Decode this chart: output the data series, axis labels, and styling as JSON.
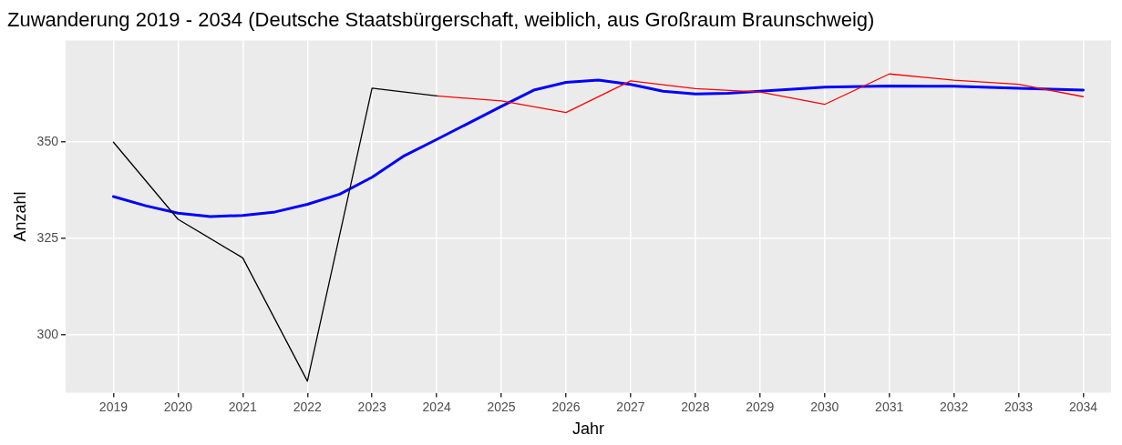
{
  "chart_data": {
    "type": "line",
    "title": "Zuwanderung 2019 - 2034 (Deutsche Staatsbürgerschaft, weiblich, aus Großraum Braunschweig)",
    "xlabel": "Jahr",
    "ylabel": "Anzahl",
    "xlim": [
      2018.26,
      2034.43
    ],
    "xticks": [
      2019,
      2020,
      2021,
      2022,
      2023,
      2024,
      2025,
      2026,
      2027,
      2028,
      2029,
      2030,
      2031,
      2032,
      2033,
      2034
    ],
    "ylim": [
      285,
      376.4
    ],
    "yticks": [
      300,
      325,
      350
    ],
    "grid": true,
    "legend": false,
    "marker": "none",
    "line_style": "solid",
    "series": [
      {
        "color": "#000000",
        "x": [
          2019,
          2020,
          2021,
          2022,
          2023,
          2024
        ],
        "values": [
          350,
          330,
          320,
          288,
          364,
          362
        ]
      },
      {
        "color": "#ff0000",
        "x": [
          2024,
          2025,
          2026,
          2027,
          2028,
          2029,
          2030,
          2031,
          2032,
          2033,
          2034
        ],
        "values": [
          362,
          360.7,
          357.7,
          365.9,
          363.9,
          363,
          359.8,
          367.7,
          366.1,
          365,
          361.8
        ]
      },
      {
        "color": "#0000ff",
        "x": [
          2019,
          2019.5,
          2020,
          2020.5,
          2021,
          2021.5,
          2022,
          2022.5,
          2023,
          2023.5,
          2024,
          2024.5,
          2025,
          2025.5,
          2026,
          2026.5,
          2027,
          2027.5,
          2028,
          2028.5,
          2029,
          2030,
          2031,
          2032,
          2033,
          2034
        ],
        "values": [
          335.9,
          333.5,
          331.6,
          330.7,
          331,
          331.9,
          333.9,
          336.5,
          340.9,
          346.5,
          350.7,
          355,
          359.3,
          363.5,
          365.5,
          366.1,
          365,
          363.2,
          362.5,
          362.7,
          363.2,
          364.3,
          364.6,
          364.5,
          364,
          363.5
        ]
      }
    ]
  }
}
